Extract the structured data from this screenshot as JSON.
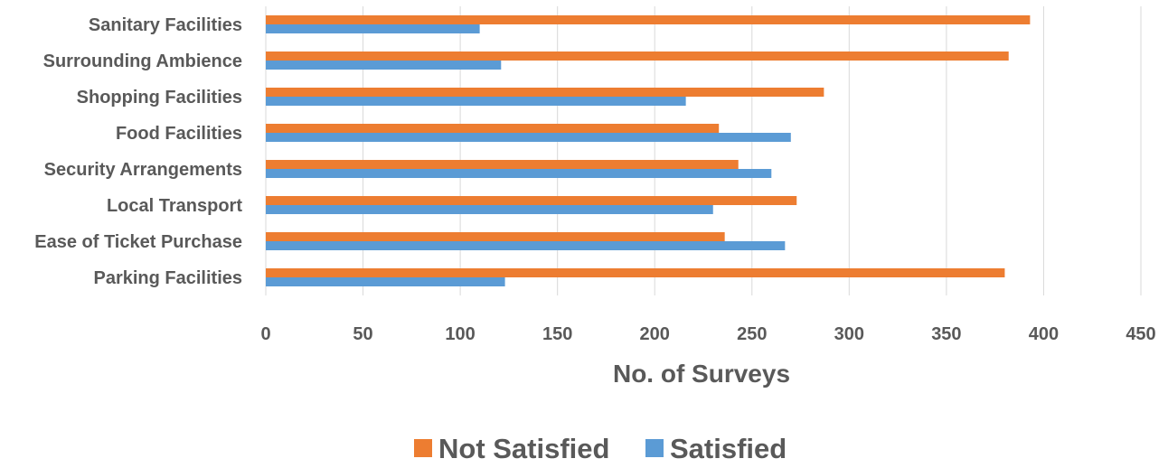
{
  "chart_data": {
    "type": "bar",
    "orientation": "horizontal",
    "categories": [
      "Sanitary Facilities",
      "Surrounding Ambience",
      "Shopping Facilities",
      "Food Facilities",
      "Security Arrangements",
      "Local Transport",
      "Ease of Ticket Purchase",
      "Parking Facilities"
    ],
    "series": [
      {
        "name": "Not Satisfied",
        "color": "#ED7D31",
        "values": [
          393,
          382,
          287,
          233,
          243,
          273,
          236,
          380
        ]
      },
      {
        "name": "Satisfied",
        "color": "#5B9BD5",
        "values": [
          110,
          121,
          216,
          270,
          260,
          230,
          267,
          123
        ]
      }
    ],
    "xlabel": "No. of Surveys",
    "ylabel": "",
    "xlim": [
      0,
      450
    ],
    "xticks": [
      "0",
      "50",
      "100",
      "150",
      "200",
      "250",
      "300",
      "350",
      "400",
      "450"
    ],
    "grid": "vertical",
    "legend": "bottom-center"
  }
}
